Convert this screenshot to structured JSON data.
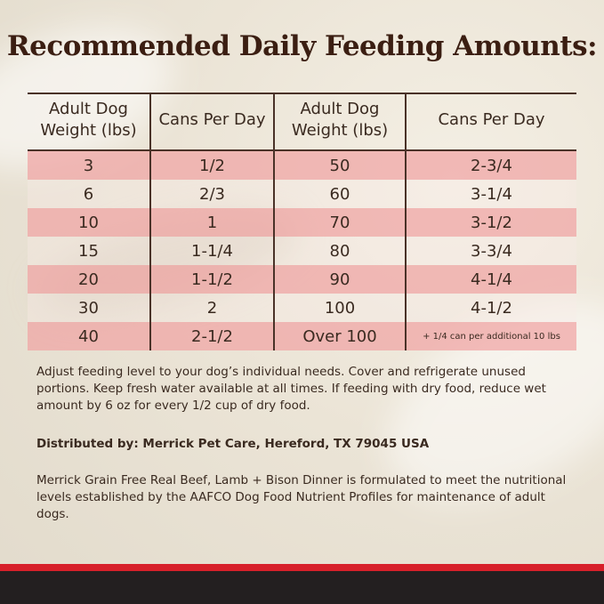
{
  "title": "Recommended Daily Feeding Amounts:",
  "table": {
    "headers": [
      "Adult Dog Weight (lbs)",
      "Cans Per Day",
      "Adult Dog Weight (lbs)",
      "Cans Per Day"
    ],
    "rows": [
      [
        "3",
        "1/2",
        "50",
        "2-3/4"
      ],
      [
        "6",
        "2/3",
        "60",
        "3-1/4"
      ],
      [
        "10",
        "1",
        "70",
        "3-1/2"
      ],
      [
        "15",
        "1-1/4",
        "80",
        "3-3/4"
      ],
      [
        "20",
        "1-1/2",
        "90",
        "4-1/4"
      ],
      [
        "30",
        "2",
        "100",
        "4-1/2"
      ],
      [
        "40",
        "2-1/2",
        "Over 100",
        "+ 1/4 can per additional 10 lbs"
      ]
    ]
  },
  "instructions": "Adjust feeding level to your dog’s individual needs. Cover and refrigerate unused portions. Keep fresh water available at all times. If feeding with dry food, reduce wet amount by 6 oz for every 1/2 cup of dry food.",
  "distributor": "Distributed by: Merrick Pet Care, Hereford, TX 79045 USA",
  "aafco_statement": "Merrick Grain Free Real Beef, Lamb + Bison Dinner is formulated to meet the nutritional levels established by the AAFCO Dog Food Nutrient Profiles for maintenance of adult dogs.",
  "colors": {
    "title": "#3b1e12",
    "row_pink": "#f0a4a4",
    "red_bar": "#d7202a",
    "black_bar": "#231f20"
  }
}
